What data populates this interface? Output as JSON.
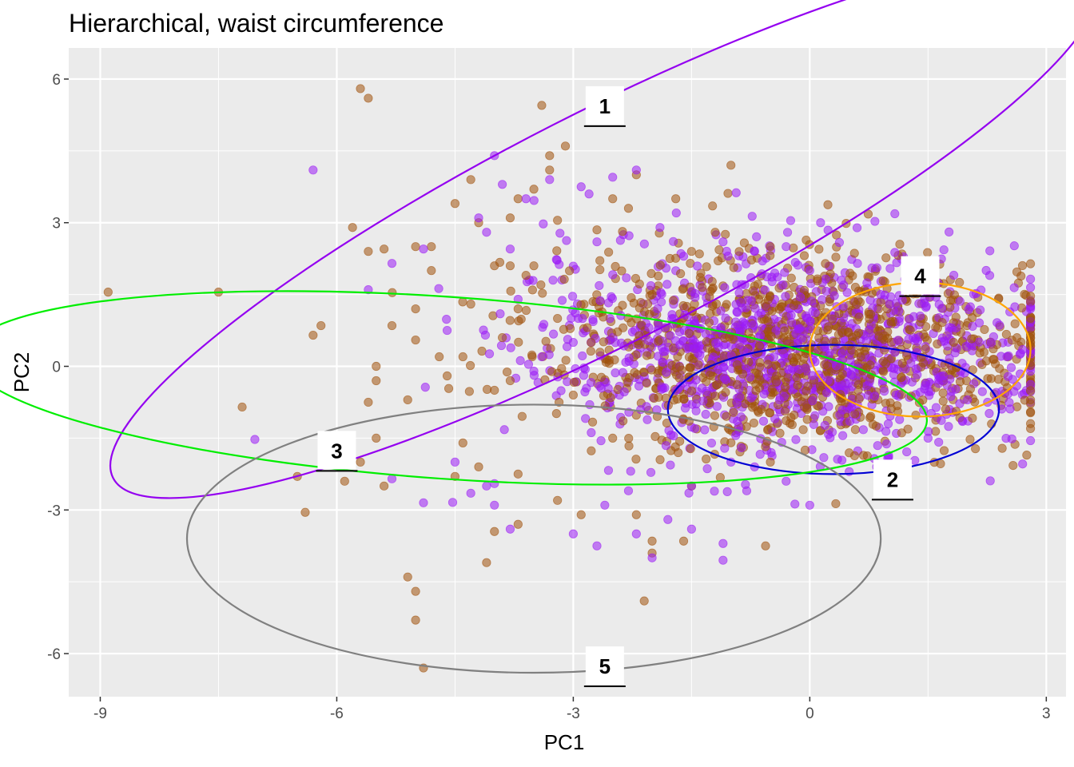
{
  "chart_data": {
    "type": "scatter",
    "title": "Hierarchical, waist circumference",
    "xlabel": "PC1",
    "ylabel": "PC2",
    "xlim": [
      -9.4,
      3.25
    ],
    "ylim": [
      -6.9,
      6.65
    ],
    "xticks": [
      -9,
      -6,
      -3,
      0,
      3
    ],
    "yticks": [
      -6,
      -3,
      0,
      3,
      6
    ],
    "grid": true,
    "legend": "none",
    "colors": {
      "panel": "#EBEBEB",
      "grid_major": "#FFFFFF",
      "series_a": "#A0520C",
      "series_b": "#9B1BF5",
      "ellipse_1": "#9400F0",
      "ellipse_2": "#0000D4",
      "ellipse_3": "#00EE00",
      "ellipse_4": "#FFA500",
      "ellipse_5": "#808080"
    },
    "ellipses": [
      {
        "label": "1",
        "center": [
          -2.6,
          2.9
        ],
        "semi_axes": [
          7.0,
          2.4
        ],
        "angle_deg": -27,
        "color": "#9400F0",
        "label_at": [
          -2.6,
          5.45
        ]
      },
      {
        "label": "2",
        "center": [
          0.3,
          -0.9
        ],
        "semi_axes": [
          2.1,
          1.35
        ],
        "angle_deg": 0,
        "color": "#0000D4",
        "label_at": [
          1.05,
          -2.35
        ]
      },
      {
        "label": "3",
        "center": [
          -4.6,
          -0.45
        ],
        "semi_axes": [
          6.1,
          1.9
        ],
        "angle_deg": 4,
        "color": "#00EE00",
        "label_at": [
          -6.0,
          -1.75
        ]
      },
      {
        "label": "4",
        "center": [
          1.4,
          0.35
        ],
        "semi_axes": [
          1.4,
          1.4
        ],
        "angle_deg": 0,
        "color": "#FFA500",
        "label_at": [
          1.4,
          1.9
        ]
      },
      {
        "label": "5",
        "center": [
          -3.5,
          -3.6
        ],
        "semi_axes": [
          4.4,
          2.8
        ],
        "angle_deg": 0,
        "color": "#808080",
        "label_at": [
          -2.6,
          -6.25
        ]
      }
    ],
    "series": [
      {
        "color": "#A0520C",
        "points": [
          [
            -5.7,
            5.8
          ],
          [
            -5.6,
            5.6
          ],
          [
            -3.4,
            5.45
          ],
          [
            -1,
            4.2
          ],
          [
            -3.1,
            4.6
          ],
          [
            -3.3,
            4.4
          ],
          [
            -3.3,
            4.1
          ],
          [
            -4.3,
            3.9
          ],
          [
            -2.2,
            4
          ],
          [
            -3.5,
            3.7
          ],
          [
            -3.7,
            3.5
          ],
          [
            -4.5,
            3.4
          ],
          [
            -3.8,
            3.1
          ],
          [
            -3.2,
            3.05
          ],
          [
            -4.2,
            3.0
          ],
          [
            -5.6,
            2.4
          ],
          [
            -4.8,
            2.5
          ],
          [
            -5,
            2.5
          ],
          [
            -5.8,
            2.9
          ],
          [
            -3.8,
            2.1
          ],
          [
            -4.0,
            2.1
          ],
          [
            -4.3,
            1.3
          ],
          [
            -3.7,
            1.2
          ],
          [
            -5.4,
            2.45
          ],
          [
            -6.2,
            0.85
          ],
          [
            -6.3,
            0.65
          ],
          [
            -5.3,
            0.85
          ],
          [
            -5.0,
            0.55
          ],
          [
            -4.7,
            0.2
          ],
          [
            -4.4,
            0.2
          ],
          [
            -5.5,
            0.0
          ],
          [
            -5.5,
            -0.3
          ],
          [
            -4.6,
            -0.2
          ],
          [
            -3.8,
            -0.3
          ],
          [
            -4.0,
            -0.5
          ],
          [
            -5.1,
            -0.7
          ],
          [
            -5.6,
            -0.75
          ],
          [
            -7.2,
            -0.85
          ],
          [
            -7.5,
            1.55
          ],
          [
            -8.9,
            1.55
          ],
          [
            -4.4,
            -1.6
          ],
          [
            -4.2,
            -2.1
          ],
          [
            -4.5,
            -2.3
          ],
          [
            -5.5,
            -1.5
          ],
          [
            -5.7,
            -2.0
          ],
          [
            -5.9,
            -2.4
          ],
          [
            -6.5,
            -2.3
          ],
          [
            -6.4,
            -3.05
          ],
          [
            -5.4,
            -2.5
          ],
          [
            -3.7,
            -2.25
          ],
          [
            -3.2,
            -2.8
          ],
          [
            -3.7,
            -3.3
          ],
          [
            -2.9,
            -3.1
          ],
          [
            -4.0,
            -3.45
          ],
          [
            -4.1,
            -4.1
          ],
          [
            -2.2,
            -3.1
          ],
          [
            -2.0,
            -3.9
          ],
          [
            -2.0,
            -3.65
          ],
          [
            -1.6,
            -3.65
          ],
          [
            -2.1,
            -4.9
          ],
          [
            -5.1,
            -4.4
          ],
          [
            -5.0,
            -4.7
          ],
          [
            -5.0,
            -5.3
          ],
          [
            -4.9,
            -6.3
          ],
          [
            -0.5,
            -2.0
          ],
          [
            -1.5,
            -2.5
          ],
          [
            -2.5,
            -1.5
          ],
          [
            -3.0,
            -0.6
          ],
          [
            -2.0,
            1.5
          ],
          [
            -1.5,
            2.4
          ],
          [
            -1.2,
            2.8
          ],
          [
            -0.5,
            2.5
          ],
          [
            -3.5,
            2.1
          ],
          [
            -3.6,
            1.9
          ],
          [
            -2.7,
            2.85
          ],
          [
            -2.5,
            3.5
          ],
          [
            -1.7,
            3.5
          ],
          [
            -2.3,
            3.3
          ],
          [
            -4.8,
            2.0
          ],
          [
            -5.0,
            1.2
          ],
          [
            -3.9,
            0.6
          ],
          [
            -3.2,
            1.0
          ]
        ]
      },
      {
        "color": "#9B1BF5",
        "points": [
          [
            -6.3,
            4.1
          ],
          [
            -4.0,
            4.4
          ],
          [
            -3.9,
            3.8
          ],
          [
            -3.6,
            3.5
          ],
          [
            -2.9,
            3.75
          ],
          [
            -2.8,
            3.6
          ],
          [
            -3.3,
            3.9
          ],
          [
            -2.5,
            3.95
          ],
          [
            -2.2,
            4.1
          ],
          [
            -4.2,
            3.1
          ],
          [
            -4.1,
            2.8
          ],
          [
            -3.8,
            2.45
          ],
          [
            -5.3,
            2.15
          ],
          [
            -5.6,
            1.6
          ],
          [
            -4.9,
            2.45
          ],
          [
            -4.6,
            0.75
          ],
          [
            -3.7,
            1.4
          ],
          [
            -3.4,
            0.2
          ],
          [
            -3.0,
            0.5
          ],
          [
            -3.5,
            -0.1
          ],
          [
            -4.1,
            -2.5
          ],
          [
            -4.0,
            -2.45
          ],
          [
            -4.3,
            -2.65
          ],
          [
            -4.0,
            -2.9
          ],
          [
            -4.5,
            -2.0
          ],
          [
            -5.3,
            -2.35
          ],
          [
            -4.9,
            -2.85
          ],
          [
            -3.8,
            -3.4
          ],
          [
            -3.0,
            -3.5
          ],
          [
            -2.7,
            -3.75
          ],
          [
            -2.2,
            -3.5
          ],
          [
            -2.0,
            -4.0
          ],
          [
            -1.8,
            -3.2
          ],
          [
            -1.1,
            -3.7
          ],
          [
            -1.1,
            -4.05
          ],
          [
            -2.6,
            -2.9
          ],
          [
            -2.3,
            -2.6
          ],
          [
            -1.5,
            -2.5
          ],
          [
            -0.8,
            -2.6
          ],
          [
            -1.0,
            -2.0
          ],
          [
            -0.3,
            -2.4
          ],
          [
            0.0,
            -2.9
          ],
          [
            -1.5,
            -3.4
          ],
          [
            -0.7,
            -2.1
          ],
          [
            0.5,
            -2.2
          ],
          [
            1.0,
            -1.9
          ],
          [
            1.5,
            -1.5
          ],
          [
            2.0,
            -0.7
          ],
          [
            2.5,
            0.2
          ],
          [
            2.7,
            0.35
          ],
          [
            2.3,
            0.5
          ],
          [
            1.8,
            0.8
          ],
          [
            1.4,
            1.05
          ],
          [
            0.9,
            1.5
          ],
          [
            0.4,
            1.8
          ],
          [
            0.0,
            2.0
          ],
          [
            -0.6,
            2.2
          ],
          [
            -1.1,
            2.6
          ],
          [
            -1.6,
            2.3
          ],
          [
            -1.9,
            2.9
          ],
          [
            -2.7,
            2.6
          ],
          [
            -0.7,
            2.4
          ],
          [
            -0.3,
            2.5
          ]
        ]
      }
    ],
    "cluster_core": {
      "center": [
        -0.2,
        0.3
      ],
      "spread": [
        1.6,
        1.0
      ]
    }
  }
}
